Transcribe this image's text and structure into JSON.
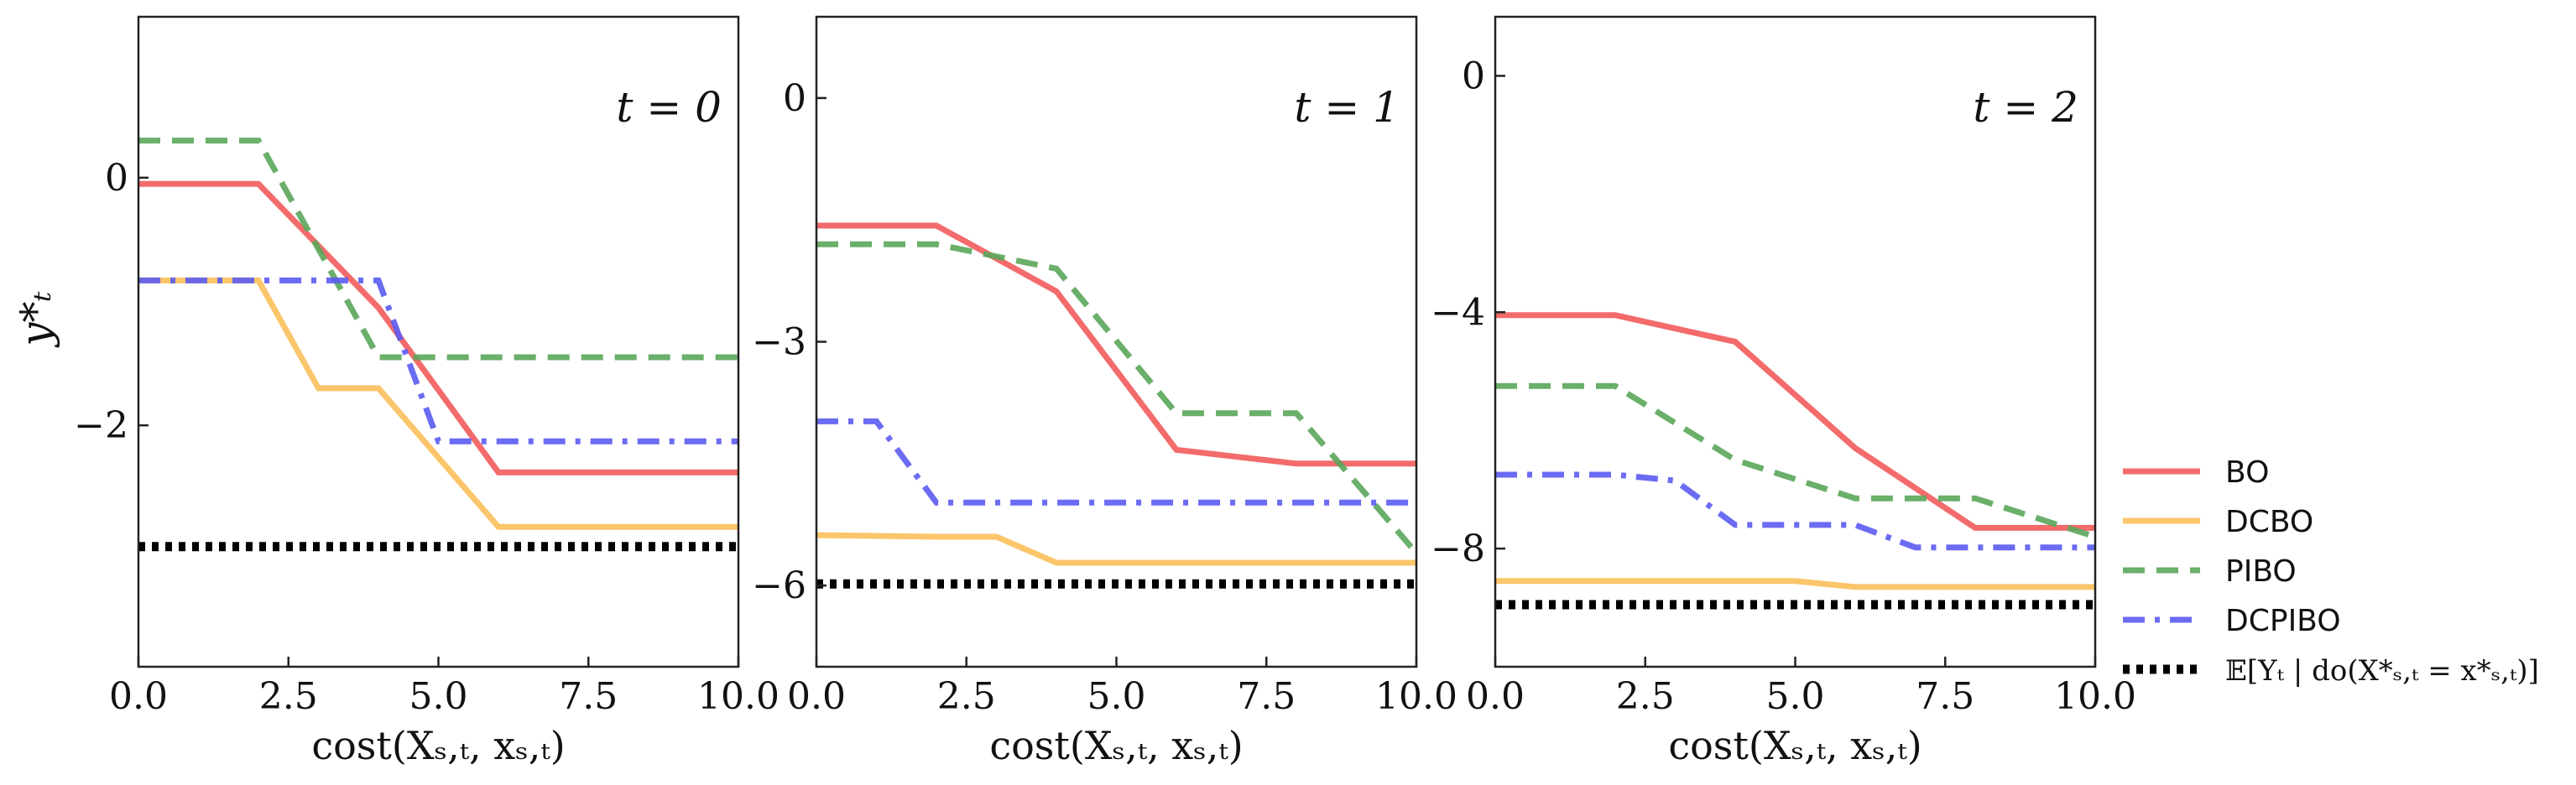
{
  "colors": {
    "BO": "#f25b5b",
    "DCBO": "#fbbf5b",
    "PIBO": "#5aa65a",
    "DCPIBO": "#5b5bf2",
    "optimum": "#000000"
  },
  "legend": [
    {
      "key": "BO",
      "label": "BO",
      "style": "solid"
    },
    {
      "key": "DCBO",
      "label": "DCBO",
      "style": "solid"
    },
    {
      "key": "PIBO",
      "label": "PIBO",
      "style": "dashed"
    },
    {
      "key": "DCPIBO",
      "label": "DCPIBO",
      "style": "dashdot"
    },
    {
      "key": "optimum",
      "label": "𝔼[Yₜ | do(X*ₛ,ₜ = x*ₛ,ₜ)]",
      "style": "dotted"
    }
  ],
  "chart_data": [
    {
      "type": "line",
      "annotation": "t = 0",
      "xlabel": "cost(Xₛ,ₜ, xₛ,ₜ)",
      "ylabel": "y*ₜ",
      "xlim": [
        0,
        10
      ],
      "ylim": [
        -3.95,
        1.3
      ],
      "xticks": [
        0,
        2.5,
        5,
        7.5,
        10
      ],
      "xtick_labels": [
        "0.0",
        "2.5",
        "5.0",
        "7.5",
        "10.0"
      ],
      "yticks": [
        0,
        -2
      ],
      "ytick_labels": [
        "0",
        "−2"
      ],
      "series": [
        {
          "key": "BO",
          "x": [
            0,
            2,
            4,
            6,
            10
          ],
          "y": [
            -0.05,
            -0.05,
            -1.05,
            -2.38,
            -2.38
          ]
        },
        {
          "key": "DCBO",
          "x": [
            0,
            2,
            3,
            4,
            6,
            10
          ],
          "y": [
            -0.83,
            -0.83,
            -1.7,
            -1.7,
            -2.82,
            -2.82
          ]
        },
        {
          "key": "PIBO",
          "x": [
            0,
            2,
            4,
            10
          ],
          "y": [
            0.3,
            0.3,
            -1.45,
            -1.45
          ]
        },
        {
          "key": "DCPIBO",
          "x": [
            0,
            4,
            5,
            10
          ],
          "y": [
            -0.83,
            -0.83,
            -2.13,
            -2.13
          ]
        },
        {
          "key": "optimum",
          "x": [
            0,
            10
          ],
          "y": [
            -2.98,
            -2.98
          ]
        }
      ]
    },
    {
      "type": "line",
      "annotation": "t = 1",
      "xlabel": "cost(Xₛ,ₜ, xₛ,ₜ)",
      "ylabel": "",
      "xlim": [
        0,
        10
      ],
      "ylim": [
        -7,
        1
      ],
      "xticks": [
        0,
        2.5,
        5,
        7.5,
        10
      ],
      "xtick_labels": [
        "0.0",
        "2.5",
        "5.0",
        "7.5",
        "10.0"
      ],
      "yticks": [
        0,
        -3,
        -6
      ],
      "ytick_labels": [
        "0",
        "−3",
        "−6"
      ],
      "series": [
        {
          "key": "BO",
          "x": [
            0,
            2,
            4,
            6,
            8,
            10
          ],
          "y": [
            -1.57,
            -1.57,
            -2.38,
            -4.33,
            -4.5,
            -4.5
          ]
        },
        {
          "key": "DCBO",
          "x": [
            0,
            2,
            3,
            4,
            10
          ],
          "y": [
            -5.38,
            -5.4,
            -5.4,
            -5.72,
            -5.72
          ]
        },
        {
          "key": "PIBO",
          "x": [
            0,
            2,
            4,
            6,
            8,
            10
          ],
          "y": [
            -1.8,
            -1.8,
            -2.1,
            -3.88,
            -3.88,
            -5.6
          ]
        },
        {
          "key": "DCPIBO",
          "x": [
            0,
            1,
            2,
            10
          ],
          "y": [
            -3.98,
            -3.98,
            -4.98,
            -4.98
          ]
        },
        {
          "key": "optimum",
          "x": [
            0,
            10
          ],
          "y": [
            -5.98,
            -5.98
          ]
        }
      ]
    },
    {
      "type": "line",
      "annotation": "t = 2",
      "xlabel": "cost(Xₛ,ₜ, xₛ,ₜ)",
      "ylabel": "",
      "xlim": [
        0,
        10
      ],
      "ylim": [
        -10,
        1
      ],
      "xticks": [
        0,
        2.5,
        5,
        7.5,
        10
      ],
      "xtick_labels": [
        "0.0",
        "2.5",
        "5.0",
        "7.5",
        "10.0"
      ],
      "yticks": [
        0,
        -4,
        -8
      ],
      "ytick_labels": [
        "0",
        "−4",
        "−8"
      ],
      "series": [
        {
          "key": "BO",
          "x": [
            0,
            2,
            4,
            6,
            8,
            10
          ],
          "y": [
            -4.05,
            -4.05,
            -4.5,
            -6.3,
            -7.65,
            -7.65
          ]
        },
        {
          "key": "DCBO",
          "x": [
            0,
            5,
            6,
            10
          ],
          "y": [
            -8.55,
            -8.55,
            -8.65,
            -8.65
          ]
        },
        {
          "key": "PIBO",
          "x": [
            0,
            2,
            4,
            6,
            8,
            10
          ],
          "y": [
            -5.25,
            -5.25,
            -6.5,
            -7.15,
            -7.15,
            -7.8
          ]
        },
        {
          "key": "DCPIBO",
          "x": [
            0,
            2,
            3,
            4,
            6,
            7,
            10
          ],
          "y": [
            -6.75,
            -6.75,
            -6.85,
            -7.6,
            -7.6,
            -7.98,
            -7.98
          ]
        },
        {
          "key": "optimum",
          "x": [
            0,
            10
          ],
          "y": [
            -8.95,
            -8.95
          ]
        }
      ]
    }
  ]
}
